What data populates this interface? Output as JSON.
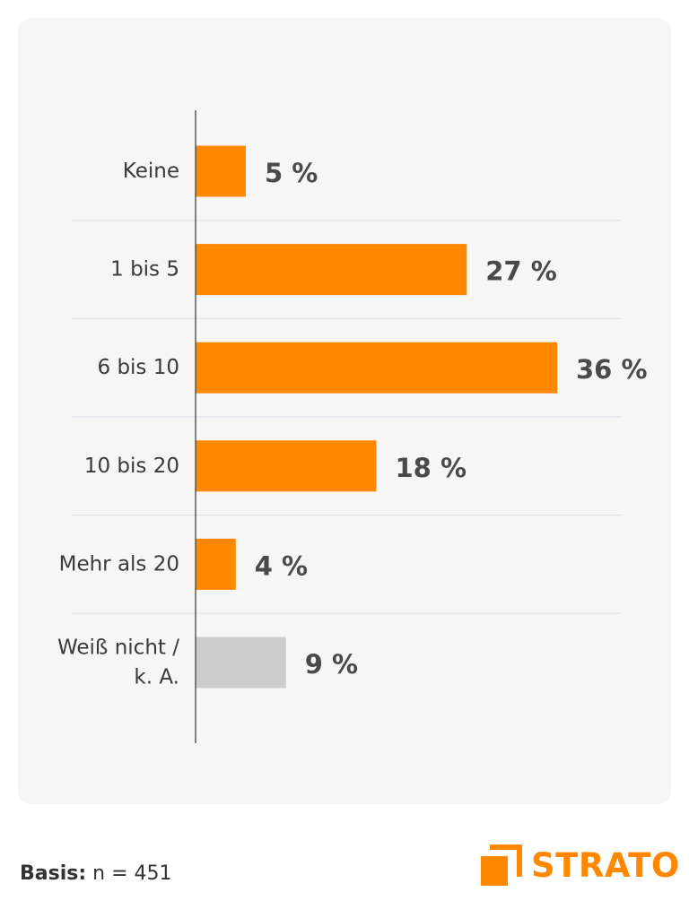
{
  "chart_data": {
    "type": "bar",
    "orientation": "horizontal",
    "categories": [
      "Keine",
      "1 bis 5",
      "6 bis 10",
      "10 bis 20",
      "Mehr als 20",
      "Weiß nicht / k. A."
    ],
    "category_lines": [
      [
        "Keine"
      ],
      [
        "1 bis 5"
      ],
      [
        "6 bis 10"
      ],
      [
        "10 bis 20"
      ],
      [
        "Mehr als 20"
      ],
      [
        "Weiß nicht /",
        "k. A."
      ]
    ],
    "values": [
      5,
      27,
      36,
      18,
      4,
      9
    ],
    "value_labels": [
      "5 %",
      "27 %",
      "36 %",
      "18 %",
      "4 %",
      "9 %"
    ],
    "unit": "%",
    "bar_colors": [
      "#ff8800",
      "#ff8800",
      "#ff8800",
      "#ff8800",
      "#ff8800",
      "#cccccc"
    ],
    "xlim": [
      0,
      36
    ],
    "grid": false,
    "legend": "none"
  },
  "footer": {
    "basis_label": "Basis:",
    "basis_value": "n = 451"
  },
  "logo": {
    "text": "STRATO",
    "color": "#ff8800"
  }
}
